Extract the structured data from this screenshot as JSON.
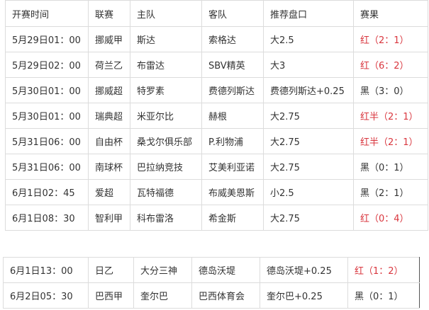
{
  "colors": {
    "red": "#d9363e",
    "black": "#333333"
  },
  "table1": {
    "headers": [
      "开赛时间",
      "联赛",
      "主队",
      "客队",
      "推荐盘口",
      "赛果"
    ],
    "rows": [
      {
        "time": "5月29日01：00",
        "league": "挪威甲",
        "home": "斯达",
        "away": "索格达",
        "tip": "大2.5",
        "result": "红（2：1）",
        "color": "red"
      },
      {
        "time": "5月29日02：00",
        "league": "荷兰乙",
        "home": "布雷达",
        "away": "SBV精英",
        "tip": "大3",
        "result": "红（6：2）",
        "color": "red"
      },
      {
        "time": "5月30日01：00",
        "league": "挪威超",
        "home": "特罗素",
        "away": "费德列斯达",
        "tip": "费德列斯达+0.25",
        "result": "黑（3：0）",
        "color": "black"
      },
      {
        "time": "5月30日01：00",
        "league": "瑞典超",
        "home": "米亚尔比",
        "away": "赫根",
        "tip": "大2.75",
        "result": "红半（2：1）",
        "color": "red"
      },
      {
        "time": "5月31日06：00",
        "league": "自由杯",
        "home": "桑戈尔俱乐部",
        "away": "P.利物浦",
        "tip": "大2.75",
        "result": "红半（2：1）",
        "color": "red"
      },
      {
        "time": "5月31日06：00",
        "league": "南球杯",
        "home": "巴拉纳竞技",
        "away": "艾美利亚诺",
        "tip": "大2.75",
        "result": "黑（0：1）",
        "color": "black"
      },
      {
        "time": "6月1日02：45",
        "league": "爱超",
        "home": "瓦特福德",
        "away": "布威美恩斯",
        "tip": "小2.5",
        "result": "黑（2：1）",
        "color": "black"
      },
      {
        "time": "6月1日08：30",
        "league": "智利甲",
        "home": "科布雷洛",
        "away": "希金斯",
        "tip": "大2.75",
        "result": "红（0：4）",
        "color": "red"
      }
    ]
  },
  "table2": {
    "rows": [
      {
        "time": "6月1日13：00",
        "league": "日乙",
        "home": "大分三神",
        "away": "德岛沃堤",
        "tip": "德岛沃堤+0.25",
        "result": "红（1：2）",
        "color": "red"
      },
      {
        "time": "6月2日05：30",
        "league": "巴西甲",
        "home": "奎尔巴",
        "away": "巴西体育会",
        "tip": "奎尔巴+0.25",
        "result": "黑（0：1）",
        "color": "black"
      }
    ]
  }
}
